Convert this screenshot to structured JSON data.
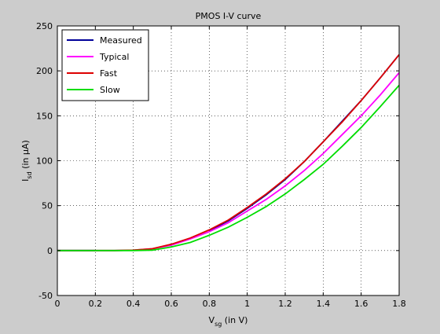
{
  "chart_data": {
    "type": "line",
    "title": "PMOS I-V curve",
    "xlabel": {
      "main": "V",
      "sub": "sg",
      "rest": " (in V)"
    },
    "ylabel": {
      "main": "I",
      "sub": "sd",
      "rest": " (in μA)"
    },
    "xlim": [
      0,
      1.8
    ],
    "ylim": [
      -50,
      250
    ],
    "xticks": [
      0,
      0.2,
      0.4,
      0.6,
      0.8,
      1,
      1.2,
      1.4,
      1.6,
      1.8
    ],
    "xtick_labels": [
      "0",
      "0.2",
      "0.4",
      "0.6",
      "0.8",
      "1",
      "1.2",
      "1.4",
      "1.6",
      "1.8"
    ],
    "yticks": [
      -50,
      0,
      50,
      100,
      150,
      200,
      250
    ],
    "ytick_labels": [
      "-50",
      "0",
      "50",
      "100",
      "150",
      "200",
      "250"
    ],
    "grid": "dotted",
    "legend_position": "top-left",
    "x": [
      0,
      0.1,
      0.2,
      0.3,
      0.4,
      0.5,
      0.6,
      0.7,
      0.8,
      0.9,
      1.0,
      1.1,
      1.2,
      1.3,
      1.4,
      1.5,
      1.6,
      1.7,
      1.8
    ],
    "series": [
      {
        "name": "Measured",
        "color": "#000099",
        "values": [
          0,
          0,
          0,
          null,
          null,
          null,
          null,
          null,
          22,
          33,
          47,
          62,
          79,
          99,
          121,
          144,
          167,
          192,
          218
        ]
      },
      {
        "name": "Typical",
        "color": "#ff00ff",
        "values": [
          0,
          0,
          0,
          0,
          0.5,
          2,
          6,
          13,
          21,
          31,
          44,
          57,
          72,
          89,
          108,
          129,
          150,
          173,
          198
        ]
      },
      {
        "name": "Fast",
        "color": "#dd0000",
        "values": [
          0,
          0,
          0,
          0,
          0.5,
          2,
          7,
          14,
          23,
          34,
          48,
          63,
          80,
          99,
          121,
          143,
          167,
          192,
          218
        ]
      },
      {
        "name": "Slow",
        "color": "#00dd00",
        "values": [
          0,
          0,
          0,
          0,
          0,
          0.5,
          4,
          9,
          17,
          26,
          37,
          49,
          63,
          79,
          96,
          116,
          137,
          160,
          184
        ]
      }
    ]
  }
}
